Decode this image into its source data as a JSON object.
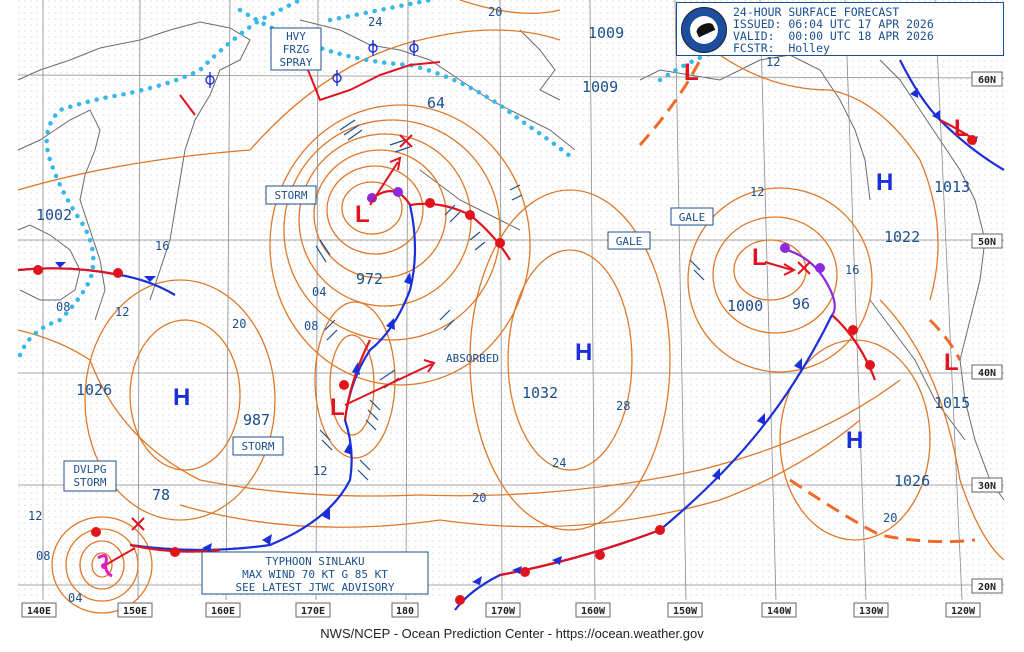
{
  "header": {
    "line1": "24-HOUR SURFACE FORECAST",
    "line2": "ISSUED: 06:04 UTC 17 APR 2026",
    "line3": "VALID:  00:00 UTC 18 APR 2026",
    "line4": "FCSTR:  Holley",
    "logo_text": "NOAA"
  },
  "footer": "NWS/NCEP - Ocean Prediction Center - https://ocean.weather.gov",
  "lon_labels": [
    "140E",
    "150E",
    "160E",
    "170E",
    "180",
    "170W",
    "160W",
    "150W",
    "140W",
    "130W",
    "120W"
  ],
  "lat_labels": [
    "60N",
    "50N",
    "40N",
    "30N",
    "20N"
  ],
  "boxes": {
    "hvy": [
      "HVY",
      "FRZG",
      "SPRAY"
    ],
    "storm1": "STORM",
    "storm2": "STORM",
    "gale1": "GALE",
    "gale2": "GALE",
    "dvlpg": [
      "DVLPG",
      "STORM"
    ],
    "typhoon": [
      "TYPHOON SINLAKU",
      "MAX WIND 70 KT G 85 KT",
      "SEE LATEST JTWC ADVISORY"
    ],
    "absorbed": "ABSORBED"
  },
  "pressures": {
    "p1002": "1002",
    "p1026w": "1026",
    "p987": "987",
    "p972": "972",
    "p64": "64",
    "p78": "78",
    "p1009a": "1009",
    "p1009b": "1009",
    "p1032": "1032",
    "p1000": "1000",
    "p96": "96",
    "p1013": "1013",
    "p1022": "1022",
    "p1015": "1015",
    "p1026e": "1026"
  },
  "isobar_labels": {
    "i16a": "16",
    "i08a": "08",
    "i12a": "12",
    "i20a": "20",
    "i04a": "04",
    "i08b": "08",
    "i12b": "12",
    "i24a": "24",
    "i20b": "20",
    "i24b": "24",
    "i28": "28",
    "i20c": "20",
    "i12c": "12",
    "i16b": "16",
    "i12d": "12",
    "i20d": "20",
    "i08c": "08",
    "i04b": "04",
    "i12e": "12"
  },
  "highs": [
    "H",
    "H",
    "H",
    "H"
  ],
  "lows": [
    "L",
    "L",
    "L",
    "L",
    "L",
    "L"
  ],
  "colors": {
    "isobar": "#e0782a",
    "cold_front": "#1b2fd8",
    "warm_front": "#e0141e",
    "occluded": "#8a2be2",
    "ice": "#39b7ea",
    "label": "#1a4f8f",
    "grid": "#777777"
  }
}
